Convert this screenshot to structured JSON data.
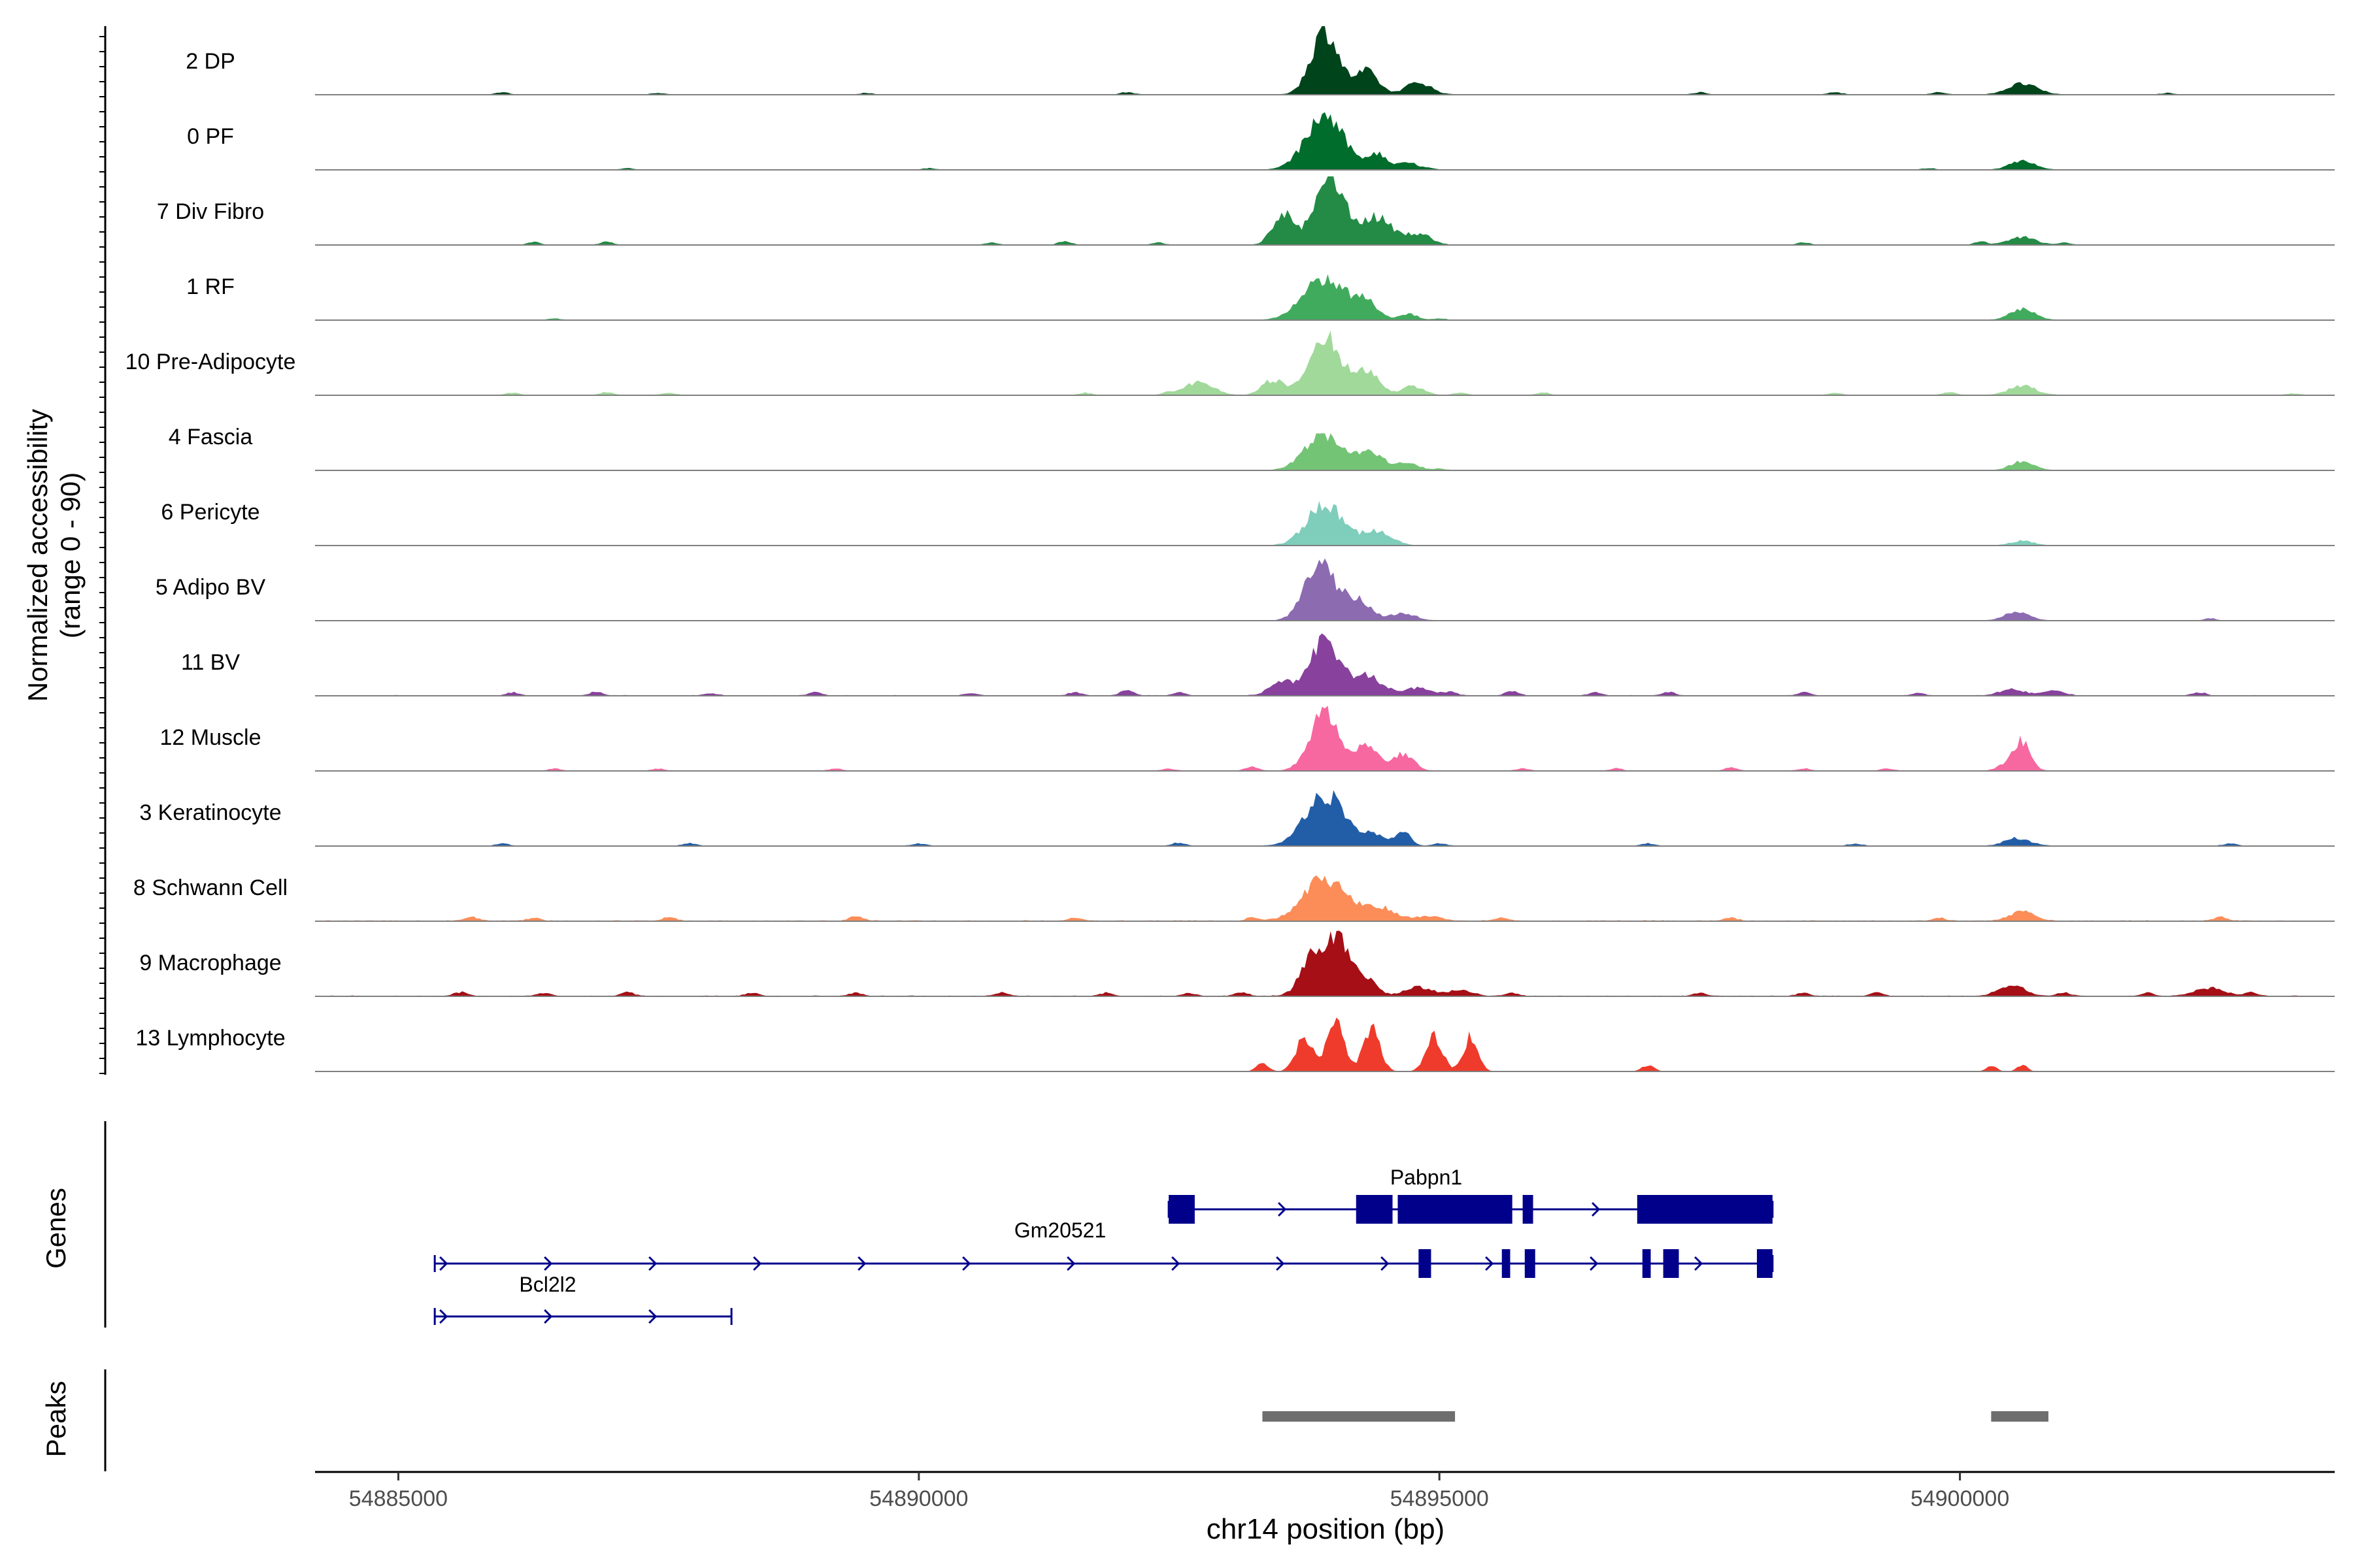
{
  "chart_data": {
    "type": "area",
    "title": "",
    "ylabel_line1": "Normalized accessibility",
    "ylabel_line2": "(range 0 - 90)",
    "xlabel": "chr14 position (bp)",
    "xlim": [
      54884200,
      54903600
    ],
    "ylim": [
      0,
      90
    ],
    "xticks": [
      54885000,
      54890000,
      54895000,
      54900000
    ],
    "xtick_labels": [
      "54885000",
      "54890000",
      "54895000",
      "54900000"
    ],
    "tracks": [
      {
        "name": "2 DP",
        "color": "#00441b",
        "bg": 0.4,
        "peaks": [
          [
            54893900,
            85,
            130
          ],
          [
            54894300,
            30,
            110
          ],
          [
            54894800,
            16,
            120
          ],
          [
            54900600,
            14,
            140
          ]
        ],
        "noise": [
          [
            54886000,
            3
          ],
          [
            54887500,
            2
          ],
          [
            54889500,
            2
          ],
          [
            54892000,
            3
          ],
          [
            54897500,
            3
          ],
          [
            54898800,
            3
          ],
          [
            54899800,
            3
          ],
          [
            54902000,
            2
          ]
        ]
      },
      {
        "name": "0 PF",
        "color": "#006d2c",
        "bg": 0.3,
        "peaks": [
          [
            54893900,
            70,
            180
          ],
          [
            54894400,
            20,
            100
          ],
          [
            54894700,
            10,
            90
          ],
          [
            54900600,
            12,
            120
          ]
        ],
        "noise": [
          [
            54887200,
            2
          ],
          [
            54890100,
            2
          ],
          [
            54894900,
            2
          ],
          [
            54899700,
            2
          ]
        ]
      },
      {
        "name": "7 Div Fibro",
        "color": "#238b45",
        "bg": 0.3,
        "peaks": [
          [
            54893500,
            40,
            100
          ],
          [
            54893950,
            82,
            150
          ],
          [
            54894400,
            35,
            150
          ],
          [
            54894800,
            14,
            120
          ],
          [
            54900600,
            10,
            130
          ]
        ],
        "noise": [
          [
            54886300,
            4
          ],
          [
            54887000,
            4
          ],
          [
            54890700,
            3
          ],
          [
            54891400,
            5
          ],
          [
            54892300,
            3
          ],
          [
            54898500,
            3
          ],
          [
            54900200,
            4
          ],
          [
            54901000,
            3
          ]
        ]
      },
      {
        "name": "1 RF",
        "color": "#41ab5d",
        "bg": 0.3,
        "peaks": [
          [
            54893900,
            55,
            200
          ],
          [
            54894300,
            20,
            110
          ],
          [
            54894700,
            8,
            90
          ],
          [
            54900600,
            14,
            120
          ]
        ],
        "noise": [
          [
            54886500,
            2
          ],
          [
            54895000,
            2
          ]
        ]
      },
      {
        "name": "10 Pre-Adipocyte",
        "color": "#a1d99b",
        "bg": 0.4,
        "peaks": [
          [
            54892700,
            18,
            130
          ],
          [
            54893400,
            20,
            100
          ],
          [
            54893900,
            75,
            150
          ],
          [
            54894300,
            32,
            120
          ],
          [
            54894750,
            12,
            100
          ],
          [
            54900600,
            12,
            130
          ]
        ],
        "noise": [
          [
            54886100,
            3
          ],
          [
            54887000,
            4
          ],
          [
            54887600,
            3
          ],
          [
            54891600,
            3
          ],
          [
            54892400,
            4
          ],
          [
            54895200,
            3
          ],
          [
            54896000,
            3
          ],
          [
            54898800,
            3
          ],
          [
            54899900,
            4
          ],
          [
            54903200,
            2
          ]
        ]
      },
      {
        "name": "4 Fascia",
        "color": "#74c476",
        "bg": 0.3,
        "peaks": [
          [
            54893900,
            48,
            180
          ],
          [
            54894350,
            22,
            120
          ],
          [
            54894700,
            10,
            100
          ],
          [
            54900600,
            12,
            110
          ]
        ],
        "noise": [
          [
            54895000,
            2
          ]
        ]
      },
      {
        "name": "6 Pericyte",
        "color": "#7fcdbb",
        "bg": 0.2,
        "peaks": [
          [
            54893900,
            55,
            170
          ],
          [
            54894400,
            18,
            140
          ],
          [
            54900600,
            6,
            110
          ]
        ],
        "noise": []
      },
      {
        "name": "5 Adipo BV",
        "color": "#8c6bb1",
        "bg": 0.2,
        "peaks": [
          [
            54893850,
            75,
            140
          ],
          [
            54894200,
            28,
            130
          ],
          [
            54894650,
            10,
            120
          ],
          [
            54900550,
            12,
            120
          ]
        ],
        "noise": [
          [
            54902400,
            3
          ]
        ]
      },
      {
        "name": "11 BV",
        "color": "#88419d",
        "bg": 0.6,
        "peaks": [
          [
            54893500,
            18,
            120
          ],
          [
            54893900,
            70,
            140
          ],
          [
            54894300,
            25,
            150
          ],
          [
            54894800,
            10,
            120
          ],
          [
            54900500,
            8,
            120
          ],
          [
            54900900,
            6,
            100
          ]
        ],
        "noise": [
          [
            54886100,
            4
          ],
          [
            54886900,
            5
          ],
          [
            54888000,
            3
          ],
          [
            54889000,
            4
          ],
          [
            54890500,
            3
          ],
          [
            54891500,
            4
          ],
          [
            54892000,
            7
          ],
          [
            54892500,
            4
          ],
          [
            54895100,
            5
          ],
          [
            54895700,
            6
          ],
          [
            54896500,
            4
          ],
          [
            54897200,
            5
          ],
          [
            54898500,
            4
          ],
          [
            54899600,
            3
          ],
          [
            54902300,
            4
          ]
        ]
      },
      {
        "name": "12 Muscle",
        "color": "#f768a1",
        "bg": 0.3,
        "peaks": [
          [
            54893900,
            75,
            140
          ],
          [
            54894300,
            30,
            120
          ],
          [
            54894650,
            22,
            100
          ],
          [
            54900500,
            12,
            100
          ],
          [
            54900600,
            32,
            80
          ]
        ],
        "noise": [
          [
            54886500,
            3
          ],
          [
            54887500,
            3
          ],
          [
            54889200,
            3
          ],
          [
            54892400,
            3
          ],
          [
            54893200,
            6
          ],
          [
            54895800,
            3
          ],
          [
            54896700,
            3
          ],
          [
            54897800,
            4
          ],
          [
            54898500,
            3
          ],
          [
            54899300,
            3
          ]
        ]
      },
      {
        "name": "3 Keratinocyte",
        "color": "#225ea8",
        "bg": 0.5,
        "peaks": [
          [
            54893900,
            68,
            180
          ],
          [
            54894350,
            15,
            120
          ],
          [
            54894650,
            18,
            70
          ],
          [
            54900550,
            10,
            120
          ]
        ],
        "noise": [
          [
            54886000,
            3
          ],
          [
            54887800,
            3
          ],
          [
            54890000,
            3
          ],
          [
            54892500,
            4
          ],
          [
            54895000,
            3
          ],
          [
            54897000,
            3
          ],
          [
            54899000,
            3
          ],
          [
            54902600,
            3
          ]
        ]
      },
      {
        "name": "8 Schwann Cell",
        "color": "#fc8d59",
        "bg": 0.8,
        "peaks": [
          [
            54893900,
            55,
            200
          ],
          [
            54894400,
            18,
            160
          ],
          [
            54894900,
            6,
            120
          ],
          [
            54900600,
            12,
            120
          ]
        ],
        "noise": [
          [
            54885700,
            5
          ],
          [
            54886300,
            4
          ],
          [
            54887600,
            5
          ],
          [
            54889400,
            6
          ],
          [
            54891500,
            4
          ],
          [
            54893200,
            4
          ],
          [
            54895600,
            4
          ],
          [
            54897800,
            4
          ],
          [
            54899800,
            4
          ],
          [
            54902500,
            5
          ]
        ]
      },
      {
        "name": "9 Macrophage",
        "color": "#a50f15",
        "bg": 0.7,
        "peaks": [
          [
            54893800,
            55,
            120
          ],
          [
            54894050,
            70,
            110
          ],
          [
            54894300,
            20,
            100
          ],
          [
            54894800,
            12,
            130
          ],
          [
            54895200,
            8,
            110
          ],
          [
            54900500,
            15,
            120
          ],
          [
            54902400,
            10,
            140
          ]
        ],
        "noise": [
          [
            54885600,
            5
          ],
          [
            54886400,
            4
          ],
          [
            54887200,
            5
          ],
          [
            54888400,
            4
          ],
          [
            54889400,
            4
          ],
          [
            54890800,
            5
          ],
          [
            54891800,
            4
          ],
          [
            54892600,
            4
          ],
          [
            54893100,
            5
          ],
          [
            54895700,
            4
          ],
          [
            54897500,
            4
          ],
          [
            54898500,
            4
          ],
          [
            54899200,
            4
          ],
          [
            54901000,
            4
          ],
          [
            54901800,
            4
          ],
          [
            54902800,
            5
          ]
        ]
      },
      {
        "name": "13 Lymphocyte",
        "color": "#ef3b2c",
        "bg": 0,
        "peaks": [
          [
            54893300,
            10,
            60
          ],
          [
            54893700,
            45,
            80
          ],
          [
            54894000,
            70,
            80
          ],
          [
            54894350,
            55,
            80
          ],
          [
            54894950,
            45,
            80
          ],
          [
            54895300,
            45,
            70
          ],
          [
            54897000,
            8,
            60
          ],
          [
            54900300,
            8,
            50
          ],
          [
            54900600,
            8,
            50
          ]
        ],
        "noise": []
      }
    ],
    "genes": [
      {
        "name": "Pabpn1",
        "row": 0,
        "start": 54892400,
        "end": 54898200,
        "strand": "+",
        "exons": [
          [
            54892400,
            54892650
          ],
          [
            54894200,
            54894550
          ],
          [
            54894600,
            54895700
          ],
          [
            54895800,
            54895900
          ],
          [
            54896900,
            54898200
          ]
        ]
      },
      {
        "name": "Gm20521",
        "row": 1,
        "start": 54885350,
        "end": 54898200,
        "strand": "+",
        "exons": [
          [
            54894800,
            54894920
          ],
          [
            54895600,
            54895680
          ],
          [
            54895820,
            54895920
          ],
          [
            54896950,
            54897030
          ],
          [
            54897150,
            54897300
          ],
          [
            54898050,
            54898200
          ]
        ]
      },
      {
        "name": "Bcl2l2",
        "row": 2,
        "start": 54885350,
        "end": 54888200,
        "strand": "+",
        "exons": []
      }
    ],
    "peaks_track": [
      [
        54893300,
        54895150
      ],
      [
        54900300,
        54900850
      ]
    ],
    "section_labels": {
      "genes": "Genes",
      "peaks": "Peaks"
    }
  }
}
